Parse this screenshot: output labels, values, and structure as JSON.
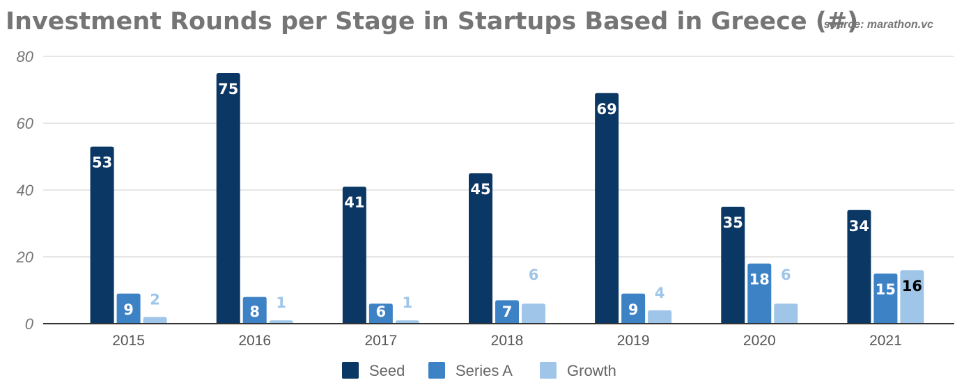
{
  "chart_data": {
    "type": "bar",
    "title": "Investment Rounds per Stage in Startups Based in Greece (#)",
    "source": "source: marathon.vc",
    "xlabel": "",
    "ylabel": "",
    "categories": [
      "2015",
      "2016",
      "2017",
      "2018",
      "2019",
      "2020",
      "2021"
    ],
    "series": [
      {
        "name": "Seed",
        "color": "#0b3764",
        "values": [
          53,
          75,
          41,
          45,
          69,
          35,
          34
        ]
      },
      {
        "name": "Series A",
        "color": "#3d82c5",
        "values": [
          9,
          8,
          6,
          7,
          9,
          18,
          15
        ]
      },
      {
        "name": "Growth",
        "color": "#9fc5e8",
        "values": [
          2,
          1,
          1,
          6,
          4,
          6,
          16
        ]
      }
    ],
    "ylim": [
      0,
      80
    ],
    "yticks": [
      0,
      20,
      40,
      60,
      80
    ],
    "grid": true,
    "legend_position": "bottom",
    "data_labels": true
  }
}
